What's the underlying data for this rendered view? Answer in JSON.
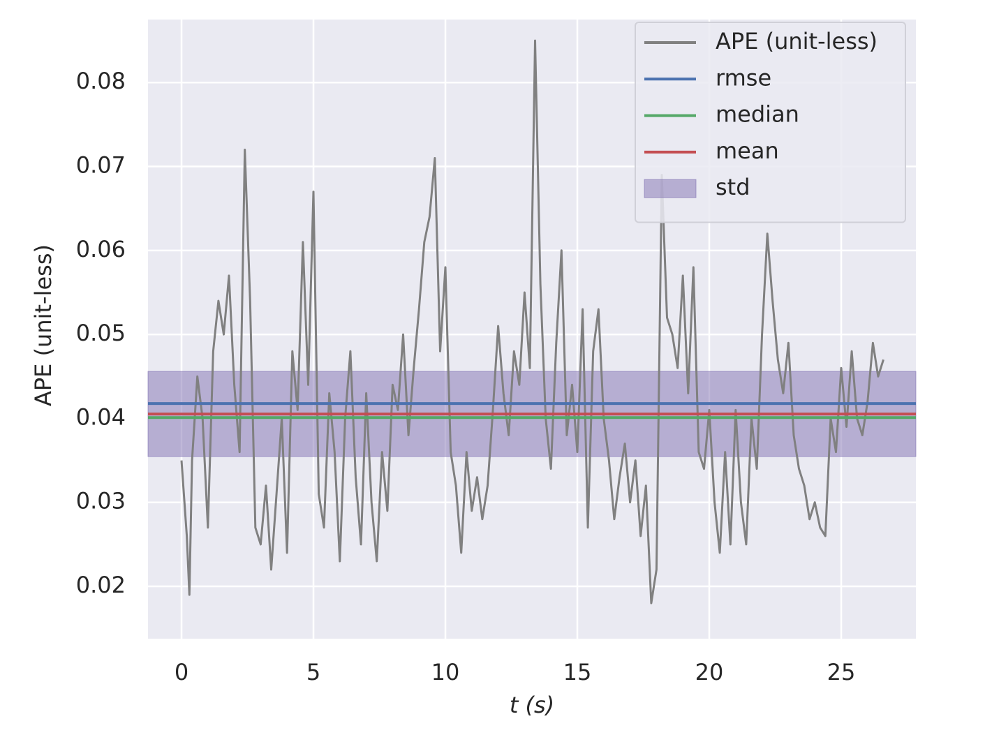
{
  "chart_data": {
    "type": "line",
    "x_label": "t (s)",
    "y_label": "APE (unit-less)",
    "x": [
      0,
      0.2,
      0.3,
      0.4,
      0.6,
      0.8,
      1.0,
      1.2,
      1.4,
      1.6,
      1.8,
      2.0,
      2.2,
      2.4,
      2.6,
      2.8,
      3.0,
      3.2,
      3.4,
      3.6,
      3.8,
      4.0,
      4.2,
      4.4,
      4.6,
      4.8,
      5.0,
      5.2,
      5.4,
      5.6,
      5.8,
      6.0,
      6.2,
      6.4,
      6.6,
      6.8,
      7.0,
      7.2,
      7.4,
      7.6,
      7.8,
      8.0,
      8.2,
      8.4,
      8.6,
      8.8,
      9.0,
      9.2,
      9.4,
      9.6,
      9.8,
      10.0,
      10.2,
      10.4,
      10.6,
      10.8,
      11.0,
      11.2,
      11.4,
      11.6,
      11.8,
      12.0,
      12.2,
      12.4,
      12.6,
      12.8,
      13.0,
      13.2,
      13.4,
      13.6,
      13.8,
      14.0,
      14.2,
      14.4,
      14.6,
      14.8,
      15.0,
      15.2,
      15.4,
      15.6,
      15.8,
      16.0,
      16.2,
      16.4,
      16.6,
      16.8,
      17.0,
      17.2,
      17.4,
      17.6,
      17.8,
      18.0,
      18.2,
      18.4,
      18.6,
      18.8,
      19.0,
      19.2,
      19.4,
      19.6,
      19.8,
      20.0,
      20.2,
      20.4,
      20.6,
      20.8,
      21.0,
      21.2,
      21.4,
      21.6,
      21.8,
      22.0,
      22.2,
      22.4,
      22.6,
      22.8,
      23.0,
      23.2,
      23.4,
      23.6,
      23.8,
      24.0,
      24.2,
      24.4,
      24.6,
      24.8,
      25.0,
      25.2,
      25.4,
      25.6,
      25.8,
      26.0,
      26.2,
      26.4,
      26.6
    ],
    "series": [
      {
        "name": "APE (unit-less)",
        "color": "#808080",
        "values": [
          0.035,
          0.026,
          0.019,
          0.035,
          0.045,
          0.04,
          0.027,
          0.048,
          0.054,
          0.05,
          0.057,
          0.044,
          0.036,
          0.072,
          0.054,
          0.027,
          0.025,
          0.032,
          0.022,
          0.031,
          0.04,
          0.024,
          0.048,
          0.041,
          0.061,
          0.044,
          0.067,
          0.031,
          0.027,
          0.043,
          0.036,
          0.023,
          0.04,
          0.048,
          0.033,
          0.025,
          0.043,
          0.03,
          0.023,
          0.036,
          0.029,
          0.044,
          0.041,
          0.05,
          0.038,
          0.046,
          0.053,
          0.061,
          0.064,
          0.071,
          0.048,
          0.058,
          0.036,
          0.032,
          0.024,
          0.036,
          0.029,
          0.033,
          0.028,
          0.032,
          0.041,
          0.051,
          0.043,
          0.038,
          0.048,
          0.044,
          0.055,
          0.046,
          0.085,
          0.056,
          0.04,
          0.034,
          0.049,
          0.06,
          0.038,
          0.044,
          0.036,
          0.053,
          0.027,
          0.048,
          0.053,
          0.04,
          0.035,
          0.028,
          0.033,
          0.037,
          0.03,
          0.035,
          0.026,
          0.032,
          0.018,
          0.022,
          0.069,
          0.052,
          0.05,
          0.046,
          0.057,
          0.043,
          0.058,
          0.036,
          0.034,
          0.041,
          0.03,
          0.024,
          0.036,
          0.025,
          0.041,
          0.03,
          0.025,
          0.04,
          0.034,
          0.05,
          0.062,
          0.054,
          0.047,
          0.043,
          0.049,
          0.038,
          0.034,
          0.032,
          0.028,
          0.03,
          0.027,
          0.026,
          0.04,
          0.036,
          0.046,
          0.039,
          0.048,
          0.04,
          0.038,
          0.042,
          0.049,
          0.045,
          0.047
        ]
      }
    ],
    "stats": [
      {
        "name": "rmse",
        "color": "#4c72b0",
        "value": 0.04177
      },
      {
        "name": "median",
        "color": "#55a868",
        "value": 0.0401
      },
      {
        "name": "mean",
        "color": "#c44e52",
        "value": 0.04053
      }
    ],
    "std": {
      "name": "std",
      "color": "#8172b2",
      "value": 0.00507
    },
    "xlim": [
      -1.27,
      27.83
    ],
    "ylim": [
      0.01377,
      0.0875
    ],
    "xticks": [
      0,
      5,
      10,
      15,
      20,
      25
    ],
    "yticks": [
      0.02,
      0.03,
      0.04,
      0.05,
      0.06,
      0.07,
      0.08
    ],
    "grid": true,
    "legend": "upper right"
  }
}
